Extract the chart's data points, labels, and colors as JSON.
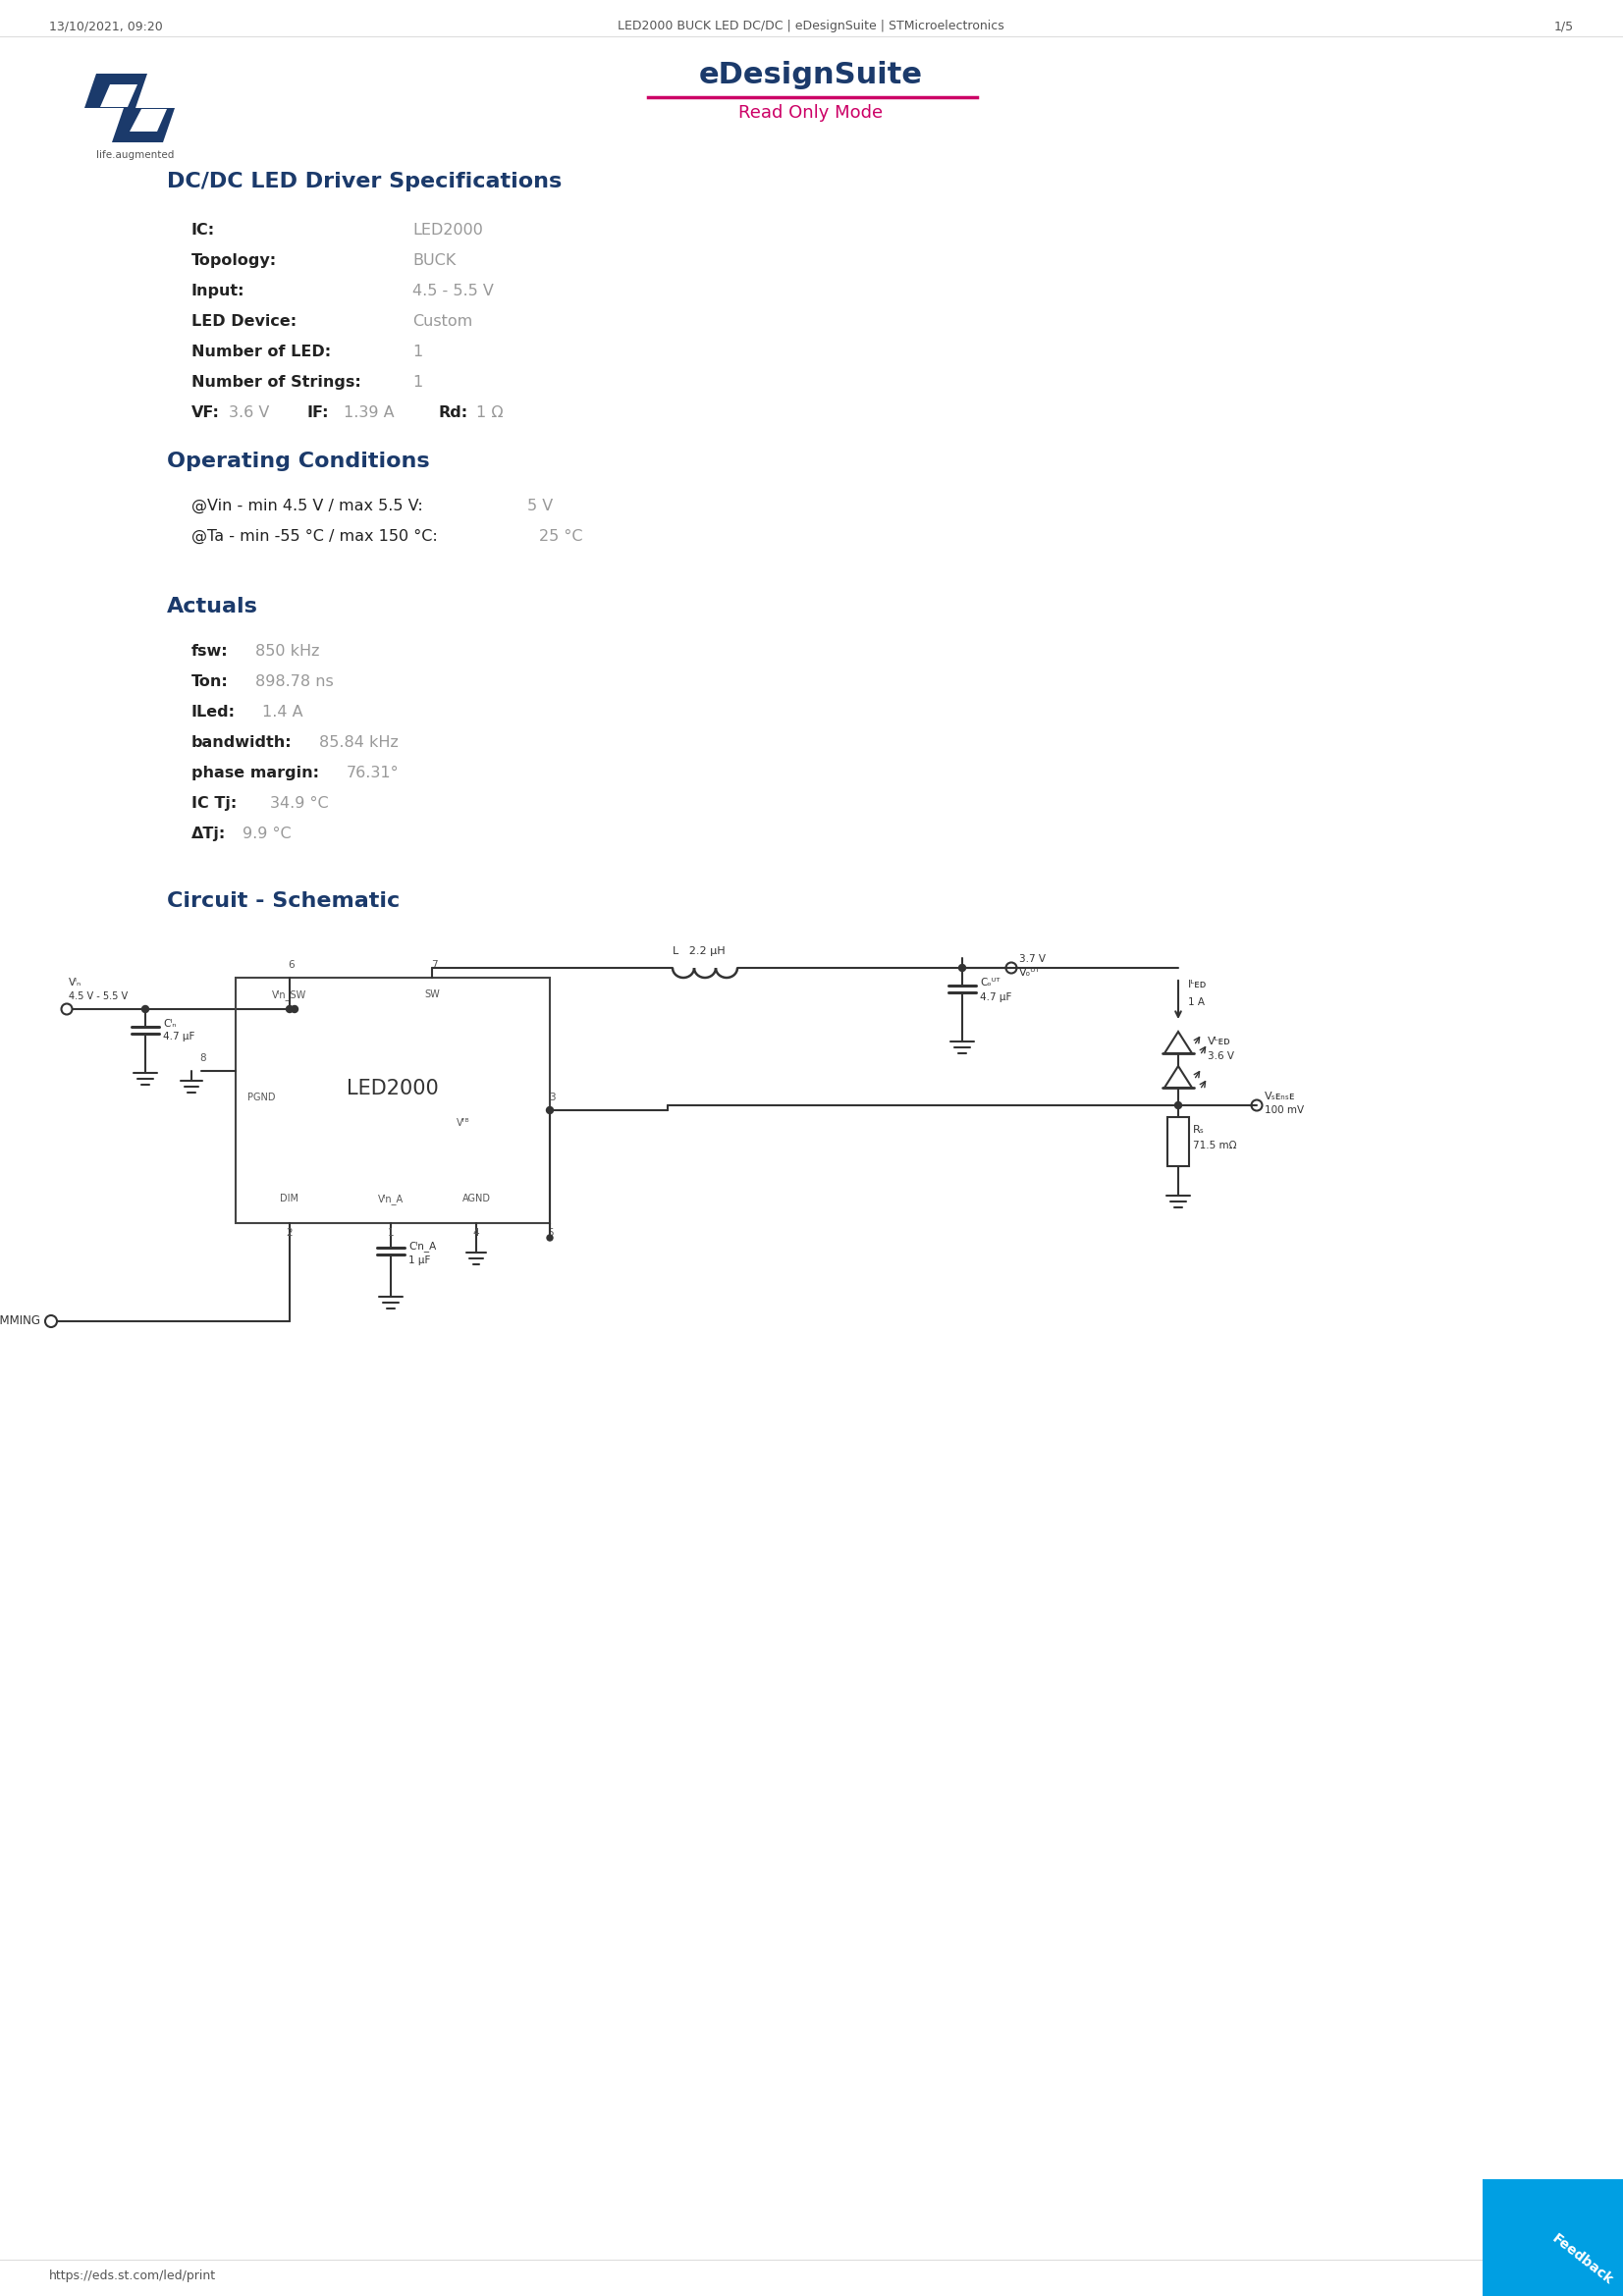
{
  "page_title_left": "13/10/2021, 09:20",
  "page_title_center": "LED2000 BUCK LED DC/DC | eDesignSuite | STMicroelectronics",
  "page_title_right": "1/5",
  "page_footer_left": "https://eds.st.com/led/print",
  "edesign_title": "eDesignSuite",
  "edesign_subtitle": "Read Only Mode",
  "section1_title": "DC/DC LED Driver Specifications",
  "section2_title": "Operating Conditions",
  "section3_title": "Actuals",
  "section4_title": "Circuit - Schematic",
  "color_dark_blue": "#1b3a6b",
  "color_magenta": "#cc0066",
  "color_gray": "#999999",
  "color_dark_gray": "#555555",
  "color_black": "#222222",
  "color_wire": "#333333",
  "color_bg": "#ffffff",
  "color_feedback": "#009FE3",
  "logo_color": "#1b3a6b",
  "spec_items": [
    {
      "label": "IC:",
      "value": "LED2000",
      "bold_label": true
    },
    {
      "label": "Topology:",
      "value": "BUCK",
      "bold_label": true
    },
    {
      "label": "Input:",
      "value": "4.5 - 5.5 V",
      "bold_label": true
    },
    {
      "label": "LED Device:",
      "value": "Custom",
      "bold_label": true
    },
    {
      "label": "Number of LED:",
      "value": "1",
      "bold_label": true
    },
    {
      "label": "Number of Strings:",
      "value": "1",
      "bold_label": true
    },
    {
      "label": "VF:",
      "value": "3.6 V",
      "bold_label": true
    }
  ],
  "vf_line": "VF:  3.6 V   IF:  1.39 A   Rd:  1 Ω",
  "op_items": [
    {
      "label": "@Vin - min 4.5 V / max 5.5 V:",
      "value": "5 V"
    },
    {
      "label": "@Ta - min -55 °C / max 150 °C:",
      "value": "25 °C"
    }
  ],
  "act_items": [
    {
      "label": "fsw:",
      "value": "850 kHz"
    },
    {
      "label": "Ton:",
      "value": "898.78 ns"
    },
    {
      "label": "ILed:",
      "value": "1.4 A"
    },
    {
      "label": "bandwidth:",
      "value": "85.84 kHz"
    },
    {
      "label": "phase margin:",
      "value": "76.31°"
    },
    {
      "label": "IC Tj:",
      "value": "34.9 °C"
    },
    {
      "label": "ΔTj:",
      "value": "9.9 °C"
    }
  ]
}
